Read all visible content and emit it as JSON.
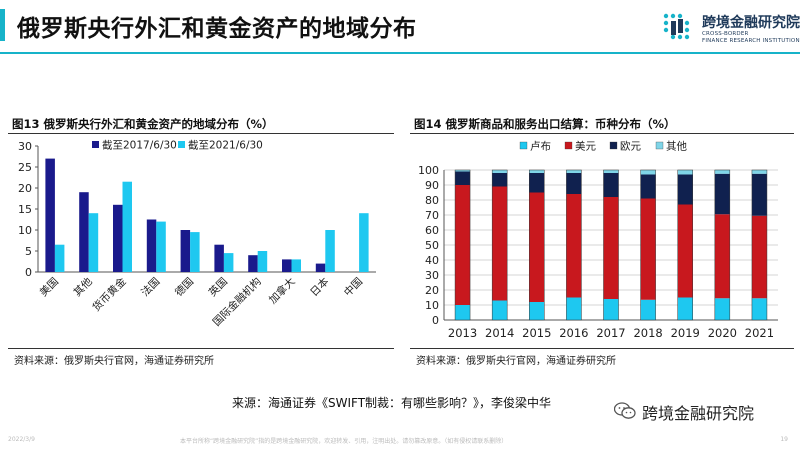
{
  "slide": {
    "title": "俄罗斯央行外汇和黄金资产的地域分布",
    "caption": "来源：海通证券《SWIFT制裁：有哪些影响？》，李俊梁中华",
    "wechat_label": "跨境金融研究院",
    "footer_date": "2022/3/9",
    "footer_note": "本平台所称“跨境金融研究院”指的是跨境金融研究院，欢迎转发、引用，注明出处。请勿篡改原意。（如有侵权请联系删除）",
    "page_number": "19"
  },
  "logo": {
    "name_cn": "跨境金融研究院",
    "name_en_line1": "CROSS-BORDER",
    "name_en_line2": "FINANCE RESEARCH INSTITUTION",
    "colors": [
      "#17b3c9",
      "#1f3a5a"
    ]
  },
  "colors": {
    "accent": "#17b3c9",
    "series_2017": "#1a1a8c",
    "series_2021": "#1ec8f0",
    "ruble": "#1ec8f0",
    "usd": "#c8181e",
    "eur": "#10214f",
    "other": "#7fd5e8"
  },
  "chart_left": {
    "title": "图13 俄罗斯央行外汇和黄金资产的地域分布（%）",
    "source": "资料来源：俄罗斯央行官网，海通证券研究所"
  },
  "chart_right": {
    "title": "图14 俄罗斯商品和服务出口结算：币种分布（%）",
    "source": "资料来源：俄罗斯央行官网，海通证券研究所"
  },
  "chart_data": [
    {
      "type": "bar",
      "categories": [
        "美国",
        "其他",
        "货币黄金",
        "法国",
        "德国",
        "英国",
        "国际金融机构",
        "加拿大",
        "日本",
        "中国"
      ],
      "series": [
        {
          "name": "截至2017/6/30",
          "values": [
            27,
            19,
            16,
            12.5,
            10,
            6.5,
            4,
            3,
            2,
            0
          ]
        },
        {
          "name": "截至2021/6/30",
          "values": [
            6.5,
            14,
            21.5,
            12,
            9.5,
            4.5,
            5,
            3,
            10,
            14
          ]
        }
      ],
      "ylim": [
        0,
        30
      ],
      "yticks": [
        0,
        5,
        10,
        15,
        20,
        25,
        30
      ],
      "legend": "top",
      "grid": false
    },
    {
      "type": "bar",
      "stacked": true,
      "categories": [
        "2013",
        "2014",
        "2015",
        "2016",
        "2017",
        "2018",
        "2019",
        "2020",
        "2021"
      ],
      "series": [
        {
          "name": "卢布",
          "values": [
            10,
            13,
            12,
            15,
            14,
            13.5,
            15,
            14.5,
            14.5
          ]
        },
        {
          "name": "美元",
          "values": [
            80,
            76,
            73,
            69,
            68,
            67.5,
            62,
            56,
            55
          ]
        },
        {
          "name": "欧元",
          "values": [
            9,
            9,
            13,
            14,
            16,
            16,
            20,
            27,
            28
          ]
        },
        {
          "name": "其他",
          "values": [
            1,
            2,
            2,
            2,
            2,
            3,
            3,
            2.5,
            2.5
          ]
        }
      ],
      "ylim": [
        0,
        100
      ],
      "yticks": [
        0,
        10,
        20,
        30,
        40,
        50,
        60,
        70,
        80,
        90,
        100
      ],
      "legend": "top",
      "grid": true
    }
  ]
}
